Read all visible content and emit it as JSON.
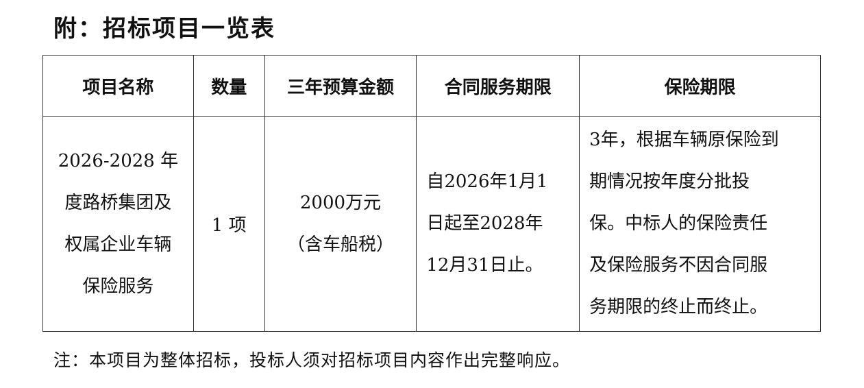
{
  "title": "附：招标项目一览表",
  "table": {
    "headers": [
      "项目名称",
      "数量",
      "三年预算金额",
      "合同服务期限",
      "保险期限"
    ],
    "row": {
      "name_lines": [
        "2026-2028 年",
        "度路桥集团及",
        "权属企业车辆",
        "保险服务"
      ],
      "quantity": "1 项",
      "budget_lines": [
        "2000万元",
        "（含车船税）"
      ],
      "term_lines": [
        "自2026年1月1",
        "日起至2028年",
        "12月31日止。"
      ],
      "insurance_lines": [
        "3年，根据车辆原保险到",
        "期情况按年度分批投",
        "保。中标人的保险责任",
        "及保险服务不因合同服",
        "务期限的终止而终止。"
      ]
    }
  },
  "note": "注：本项目为整体招标，投标人须对招标项目内容作出完整响应。"
}
